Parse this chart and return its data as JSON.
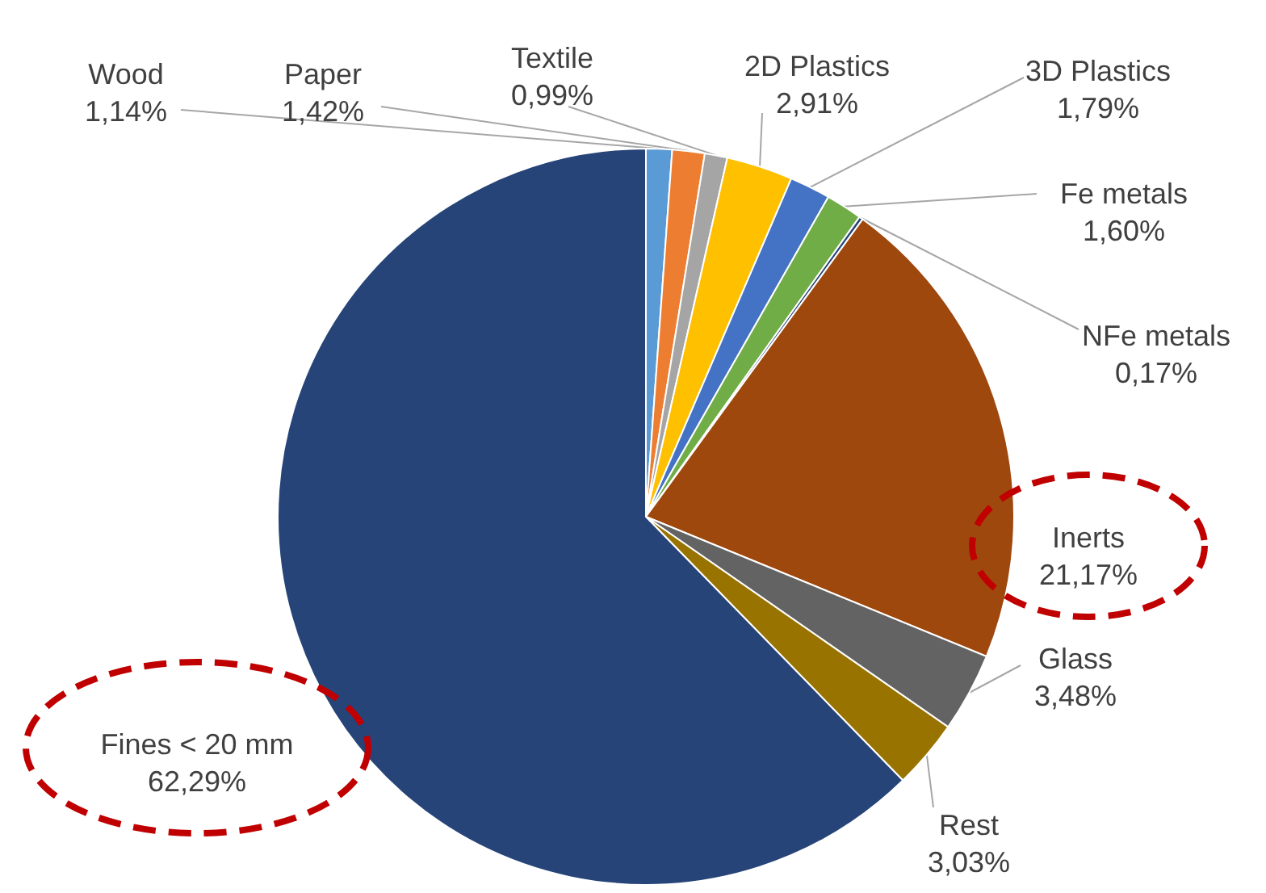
{
  "chart_data": {
    "type": "pie",
    "categories": [
      "Wood",
      "Paper",
      "Textile",
      "2D Plastics",
      "3D Plastics",
      "Fe metals",
      "NFe metals",
      "Inerts",
      "Glass",
      "Rest",
      "Fines < 20 mm"
    ],
    "values": [
      1.14,
      1.42,
      0.99,
      2.91,
      1.79,
      1.6,
      0.17,
      21.17,
      3.48,
      3.03,
      62.29
    ],
    "colors": [
      "#5b9bd5",
      "#ed7d31",
      "#a5a5a5",
      "#ffc000",
      "#4472c4",
      "#70ad47",
      "#264478",
      "#9e480e",
      "#636363",
      "#997300",
      "#264478"
    ],
    "value_labels": [
      "1,14%",
      "1,42%",
      "0,99%",
      "2,91%",
      "1,79%",
      "1,60%",
      "0,17%",
      "21,17%",
      "3,48%",
      "3,03%",
      "62,29%"
    ]
  }
}
